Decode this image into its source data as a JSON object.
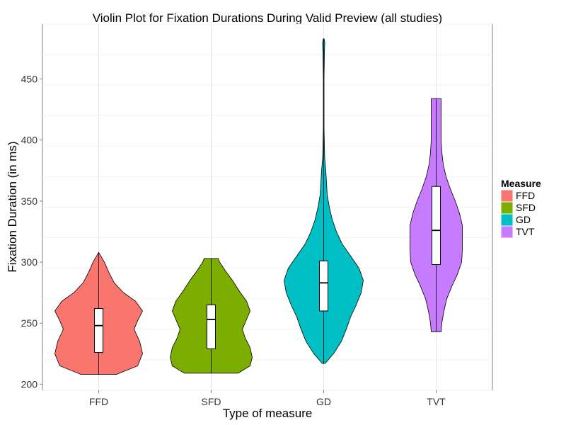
{
  "chart_data": {
    "type": "violin",
    "title": "Violin Plot for Fixation Durations During Valid Preview (all studies)",
    "xlabel": "Type of measure",
    "ylabel": "Fixation Duration (in ms)",
    "ylim": [
      195,
      495
    ],
    "yticks": [
      200,
      250,
      300,
      350,
      400,
      450
    ],
    "grid": true,
    "legend_title": "Measure",
    "legend_position": "right",
    "categories": [
      "FFD",
      "SFD",
      "GD",
      "TVT"
    ],
    "series": [
      {
        "name": "FFD",
        "color": "#F8766D",
        "min": 208,
        "max": 308,
        "box": {
          "q1": 226,
          "median": 248,
          "q3": 262
        },
        "profile": [
          [
            208,
            25
          ],
          [
            215,
            55
          ],
          [
            225,
            62
          ],
          [
            235,
            58
          ],
          [
            245,
            50
          ],
          [
            252,
            55
          ],
          [
            260,
            62
          ],
          [
            268,
            52
          ],
          [
            275,
            35
          ],
          [
            283,
            22
          ],
          [
            292,
            14
          ],
          [
            300,
            8
          ],
          [
            305,
            3
          ],
          [
            308,
            0
          ]
        ]
      },
      {
        "name": "SFD",
        "color": "#7CAE00",
        "min": 209,
        "max": 303,
        "box": {
          "q1": 229,
          "median": 253,
          "q3": 265
        },
        "profile": [
          [
            209,
            38
          ],
          [
            215,
            55
          ],
          [
            222,
            58
          ],
          [
            230,
            55
          ],
          [
            238,
            48
          ],
          [
            245,
            44
          ],
          [
            253,
            50
          ],
          [
            260,
            55
          ],
          [
            268,
            50
          ],
          [
            276,
            40
          ],
          [
            285,
            30
          ],
          [
            293,
            20
          ],
          [
            300,
            12
          ],
          [
            303,
            10
          ]
        ]
      },
      {
        "name": "GD",
        "color": "#00BFC4",
        "min": 217,
        "max": 483,
        "box": {
          "q1": 260,
          "median": 283,
          "q3": 301
        },
        "profile": [
          [
            217,
            2
          ],
          [
            225,
            14
          ],
          [
            235,
            25
          ],
          [
            245,
            32
          ],
          [
            255,
            38
          ],
          [
            265,
            46
          ],
          [
            275,
            53
          ],
          [
            285,
            56
          ],
          [
            295,
            50
          ],
          [
            305,
            38
          ],
          [
            315,
            26
          ],
          [
            325,
            18
          ],
          [
            335,
            12
          ],
          [
            345,
            8
          ],
          [
            355,
            5
          ],
          [
            365,
            4
          ],
          [
            375,
            3
          ],
          [
            385,
            1.5
          ],
          [
            395,
            1
          ],
          [
            410,
            0.5
          ],
          [
            430,
            0.5
          ],
          [
            450,
            0.5
          ],
          [
            470,
            1
          ],
          [
            480,
            1.5
          ],
          [
            483,
            0.5
          ]
        ]
      },
      {
        "name": "TVT",
        "color": "#C77CFF",
        "min": 243,
        "max": 434,
        "box": {
          "q1": 298,
          "median": 326,
          "q3": 362
        },
        "profile": [
          [
            243,
            7
          ],
          [
            250,
            8
          ],
          [
            260,
            11
          ],
          [
            270,
            15
          ],
          [
            280,
            22
          ],
          [
            290,
            30
          ],
          [
            300,
            36
          ],
          [
            310,
            37
          ],
          [
            320,
            37
          ],
          [
            330,
            37
          ],
          [
            340,
            33
          ],
          [
            350,
            27
          ],
          [
            360,
            20
          ],
          [
            370,
            14
          ],
          [
            380,
            10
          ],
          [
            390,
            8
          ],
          [
            400,
            7
          ],
          [
            410,
            7
          ],
          [
            420,
            7
          ],
          [
            434,
            7
          ]
        ]
      }
    ]
  }
}
